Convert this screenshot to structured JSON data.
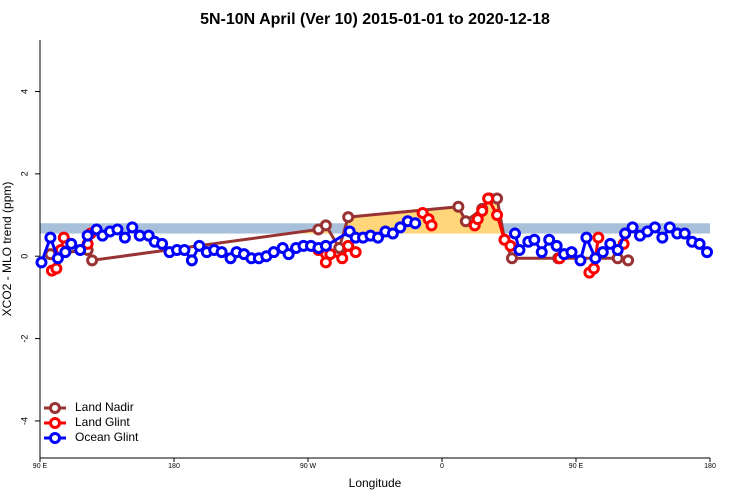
{
  "chart_data": {
    "type": "line",
    "title": "5N-10N April (Ver 10)   2015-01-01 to 2020-12-18",
    "xlabel": "Longitude",
    "ylabel": "XCO2 - MLO trend (ppm)",
    "xlim": [
      90,
      540
    ],
    "ylim": [
      -4.9,
      5.25
    ],
    "xticks": [
      {
        "value": 90,
        "label": "90 E"
      },
      180,
      {
        "value": 270,
        "label": "90 W"
      },
      {
        "value": 360,
        "label": "0"
      },
      {
        "value": 450,
        "label": "90 E"
      },
      {
        "value": 540,
        "label": "180"
      }
    ],
    "yticks": [
      -4,
      -2,
      0,
      2,
      4
    ],
    "reference_band": [
      0.55,
      0.8
    ],
    "reference_band_color": "#a9c0db",
    "land_fill_color": "#ffd77a",
    "legend": "bottom-left",
    "series": [
      {
        "name": "Land Nadir",
        "color": "#993333",
        "land": true,
        "x": [
          97,
          122,
          125,
          277,
          282,
          291,
          297,
          371,
          376,
          387,
          392,
          397,
          402,
          407,
          438,
          478,
          485
        ],
        "values": [
          0.05,
          0.15,
          -0.1,
          0.65,
          0.75,
          0.2,
          0.95,
          1.2,
          0.85,
          1.15,
          1.4,
          1.4,
          0.4,
          -0.05,
          -0.05,
          -0.05,
          -0.1
        ]
      },
      {
        "name": "Land Glint",
        "color": "#ff0000",
        "land": true,
        "x": [
          98,
          101,
          104,
          106,
          115,
          122,
          124,
          250,
          277,
          282,
          285,
          293,
          297,
          302,
          330,
          347,
          351,
          353,
          370,
          382,
          384,
          387,
          391,
          397,
          402,
          406,
          420,
          439,
          450,
          459,
          462,
          465,
          475,
          482,
          483
        ],
        "values": [
          -0.35,
          -0.3,
          0.15,
          0.45,
          null,
          0.3,
          0.55,
          null,
          0.15,
          -0.15,
          0.05,
          -0.05,
          0.25,
          0.1,
          null,
          1.05,
          0.9,
          0.75,
          null,
          0.75,
          0.9,
          1.1,
          1.4,
          1.0,
          0.4,
          0.25,
          null,
          -0.05,
          null,
          -0.4,
          -0.3,
          0.45,
          null,
          0.3,
          0.55
        ]
      },
      {
        "name": "Ocean Glint",
        "color": "#0000ff",
        "land": false,
        "x": [
          91,
          97,
          102,
          107,
          111,
          117,
          122,
          128,
          132,
          137,
          142,
          147,
          152,
          157,
          163,
          167,
          172,
          177,
          182,
          187,
          192,
          197,
          202,
          207,
          212,
          218,
          222,
          227,
          232,
          237,
          242,
          247,
          253,
          257,
          262,
          267,
          272,
          277,
          282,
          298,
          302,
          307,
          312,
          317,
          322,
          327,
          332,
          337,
          342,
          375,
          409,
          412,
          418,
          422,
          427,
          432,
          437,
          442,
          447,
          453,
          457,
          463,
          468,
          473,
          478,
          483,
          488,
          493,
          498,
          503,
          508,
          513,
          518,
          523,
          528,
          533,
          538
        ],
        "values": [
          -0.15,
          0.45,
          -0.05,
          0.1,
          0.3,
          0.15,
          0.5,
          0.65,
          0.5,
          0.6,
          0.65,
          0.45,
          0.7,
          0.5,
          0.5,
          0.35,
          0.3,
          0.1,
          0.15,
          0.15,
          -0.1,
          0.25,
          0.1,
          0.15,
          0.1,
          -0.05,
          0.1,
          0.05,
          -0.05,
          -0.05,
          0,
          0.1,
          0.2,
          0.05,
          0.2,
          0.25,
          0.25,
          0.2,
          0.25,
          0.6,
          0.45,
          0.45,
          0.5,
          0.45,
          0.6,
          0.55,
          0.7,
          0.85,
          0.8,
          null,
          0.55,
          0.15,
          0.35,
          0.4,
          0.1,
          0.4,
          0.25,
          0.05,
          0.1,
          -0.1,
          0.45,
          -0.05,
          0.1,
          0.3,
          0.15,
          0.55,
          0.7,
          0.5,
          0.6,
          0.7,
          0.45,
          0.7,
          0.55,
          0.55,
          0.35,
          0.3,
          0.1
        ]
      }
    ]
  }
}
